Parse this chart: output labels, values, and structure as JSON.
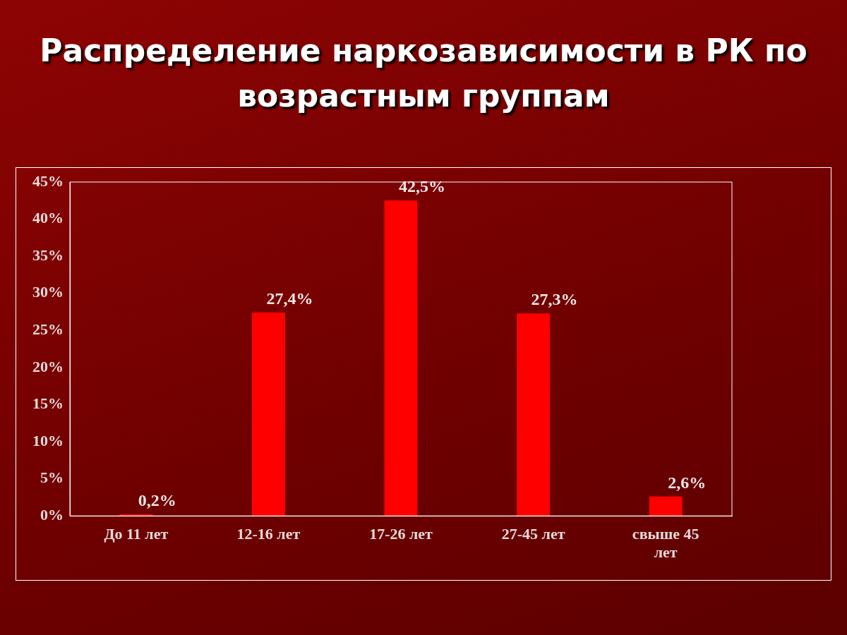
{
  "chart_data": {
    "type": "bar",
    "title": "Распределение наркозависимости в РК по возрастным группам",
    "categories": [
      "До 11 лет",
      "12-16 лет",
      "17-26 лет",
      "27-45 лет",
      "свыше 45 лет"
    ],
    "values": [
      0.2,
      27.4,
      42.5,
      27.3,
      2.6
    ],
    "value_labels": [
      "0,2%",
      "27,4%",
      "42,5%",
      "27,3%",
      "2,6%"
    ],
    "color": "#ff0000",
    "ylim": [
      0,
      45
    ],
    "yticks": [
      {
        "value": 0,
        "label": "0%"
      },
      {
        "value": 5,
        "label": "5%"
      },
      {
        "value": 10,
        "label": "10%"
      },
      {
        "value": 15,
        "label": "15%"
      },
      {
        "value": 20,
        "label": "20%"
      },
      {
        "value": 25,
        "label": "25%"
      },
      {
        "value": 30,
        "label": "30%"
      },
      {
        "value": 35,
        "label": "35%"
      },
      {
        "value": 40,
        "label": "40%"
      },
      {
        "value": 45,
        "label": "45%"
      }
    ],
    "grid": false,
    "legend": false
  }
}
